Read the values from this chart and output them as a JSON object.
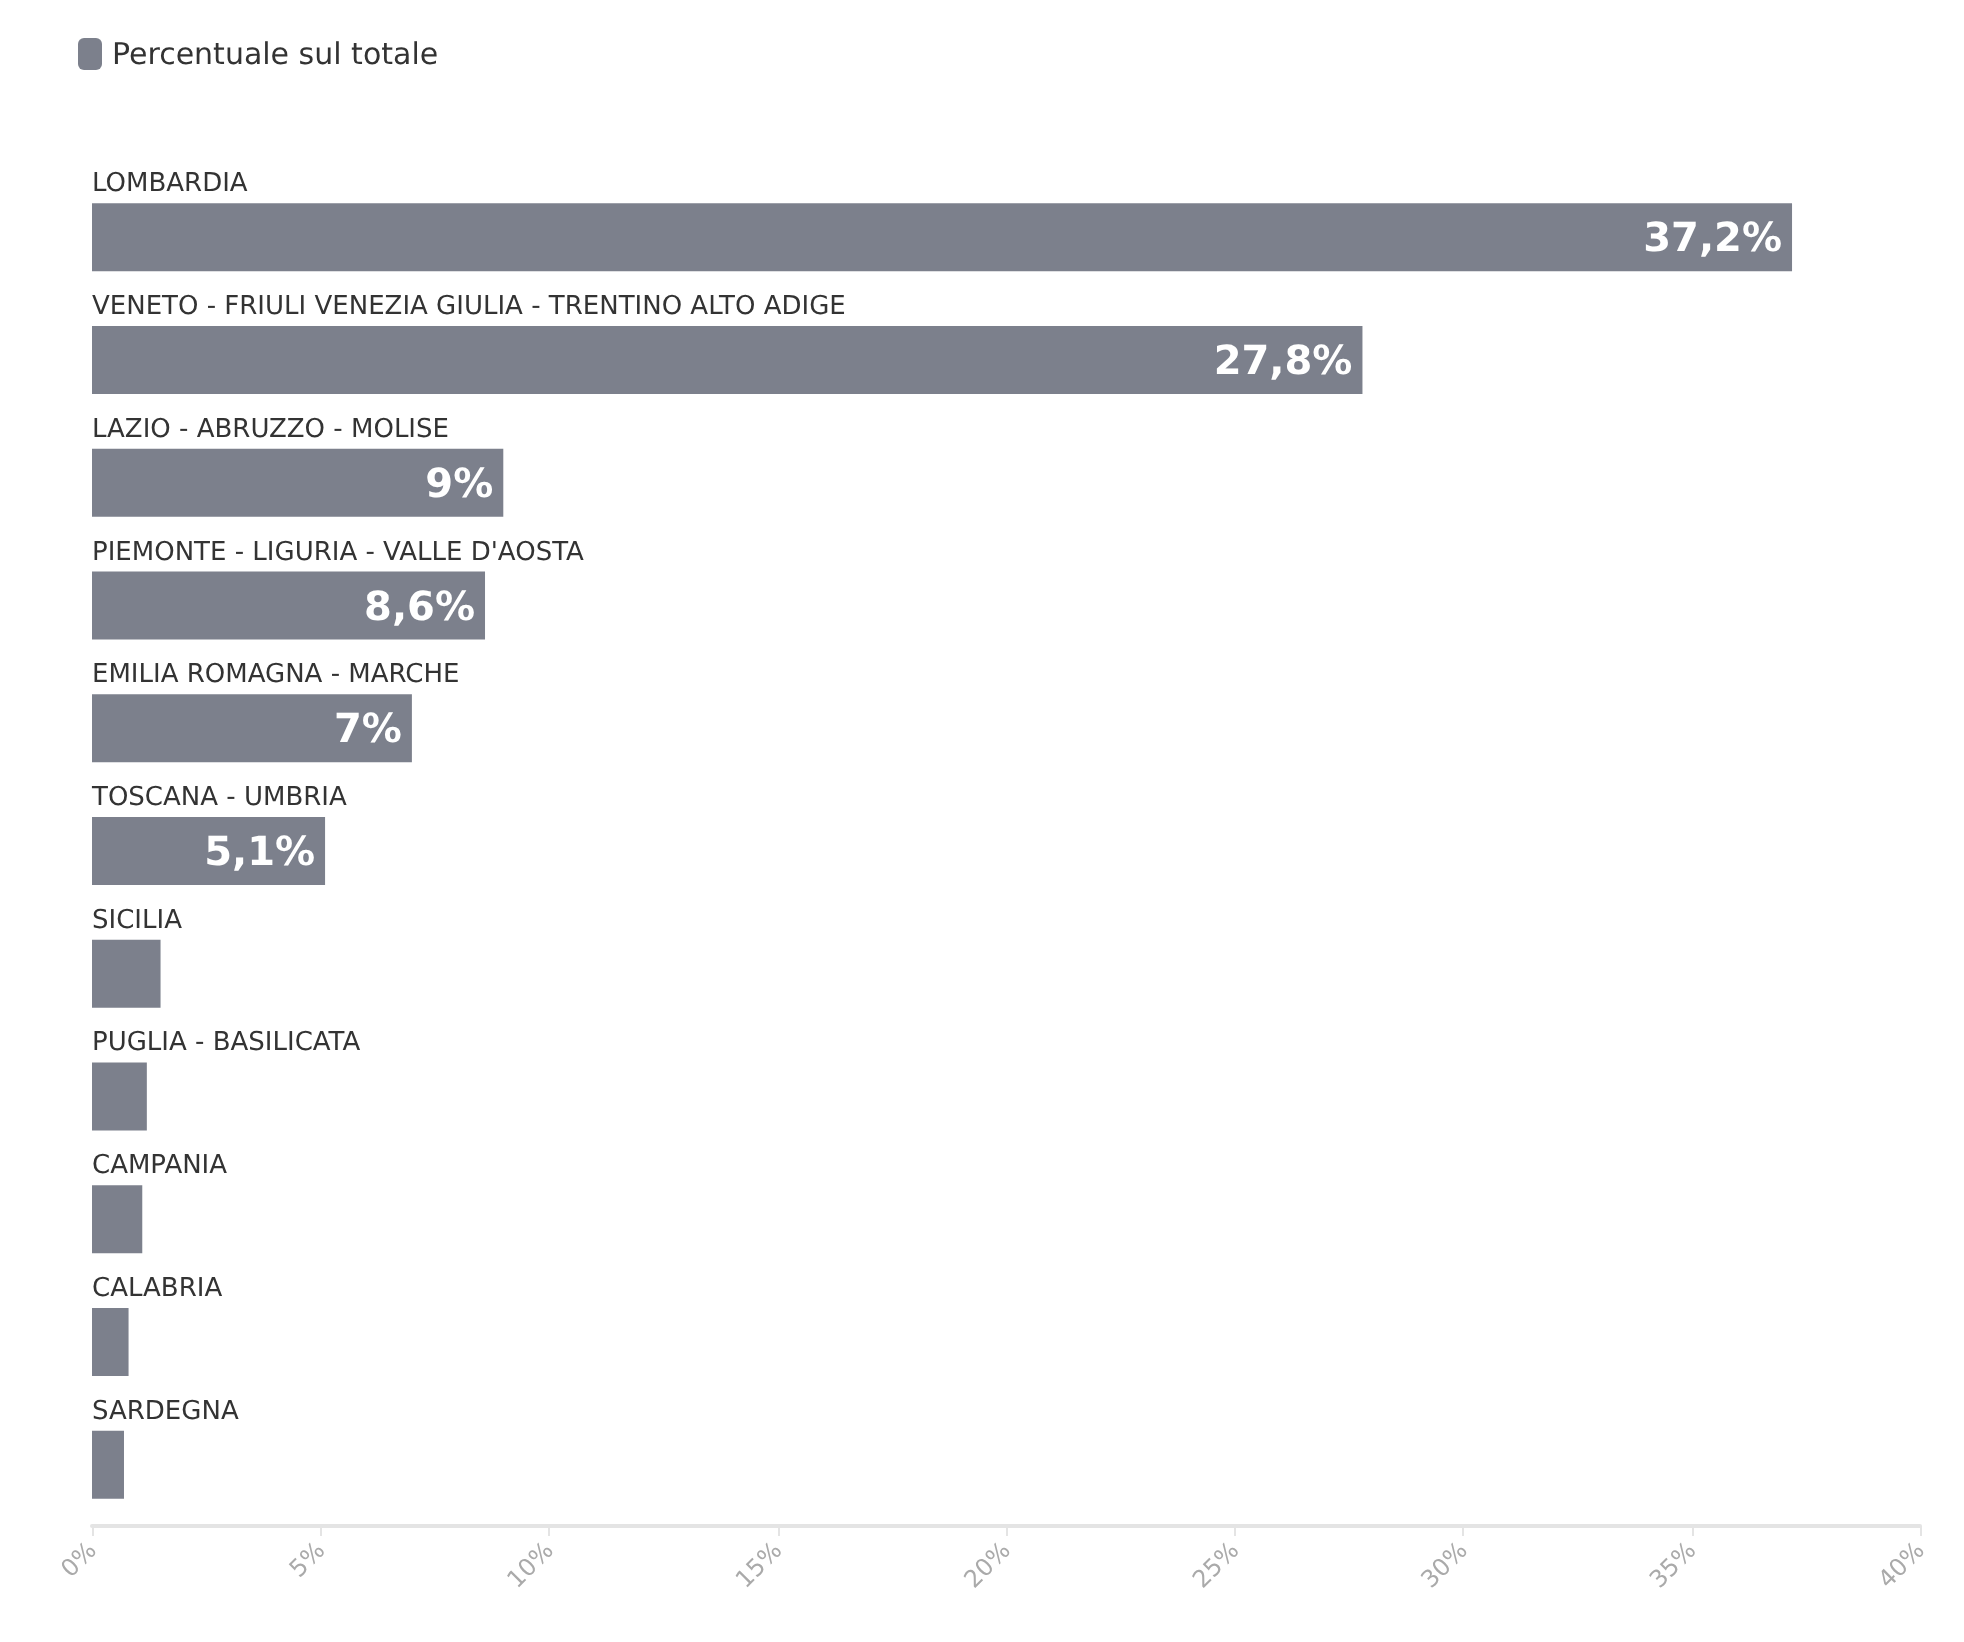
{
  "chart_data": {
    "type": "bar",
    "orientation": "horizontal",
    "categories": [
      "LOMBARDIA",
      "VENETO - FRIULI VENEZIA GIULIA - TRENTINO ALTO ADIGE",
      "LAZIO - ABRUZZO - MOLISE",
      "PIEMONTE - LIGURIA - VALLE D'AOSTA",
      "EMILIA ROMAGNA - MARCHE",
      "TOSCANA - UMBRIA",
      "SICILIA",
      "PUGLIA - BASILICATA",
      "CAMPANIA",
      "CALABRIA",
      "SARDEGNA"
    ],
    "series": [
      {
        "name": "Percentuale sul totale",
        "color": "#7c808c",
        "values": [
          37.2,
          27.8,
          9,
          8.6,
          7,
          5.1,
          1.5,
          1.2,
          1.1,
          0.8,
          0.7
        ],
        "value_labels": [
          "37,2%",
          "27,8%",
          "9%",
          "8,6%",
          "7%",
          "5,1%",
          null,
          null,
          null,
          null,
          null
        ]
      }
    ],
    "xlim": [
      0,
      40
    ],
    "xticks": [
      {
        "value": 0,
        "label": "0%"
      },
      {
        "value": 5,
        "label": "5%"
      },
      {
        "value": 10,
        "label": "10%"
      },
      {
        "value": 15,
        "label": "15%"
      },
      {
        "value": 20,
        "label": "20%"
      },
      {
        "value": 25,
        "label": "25%"
      },
      {
        "value": 30,
        "label": "30%"
      },
      {
        "value": 35,
        "label": "35%"
      },
      {
        "value": 40,
        "label": "40%"
      }
    ],
    "grid": false,
    "legend": "top left"
  }
}
